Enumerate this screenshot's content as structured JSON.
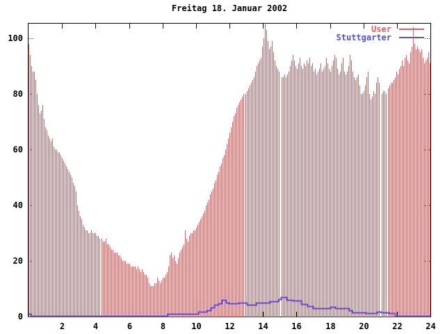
{
  "chart_data": {
    "type": "bar",
    "title": "Freitag 18. Januar 2002",
    "xlabel": "",
    "ylabel": "",
    "xlim": [
      0,
      24
    ],
    "ylim": [
      0,
      105.5
    ],
    "x_ticks": [
      2,
      4,
      6,
      8,
      10,
      12,
      14,
      16,
      18,
      20,
      22,
      24
    ],
    "y_ticks": [
      0,
      20,
      40,
      60,
      80,
      100
    ],
    "grid": "off",
    "legend_position": "top-right",
    "background_color": "#ffffff",
    "axis_color": "#000000",
    "x_step_hours": 0.083333,
    "series": [
      {
        "name": "User",
        "type": "impulse-bars",
        "color": "#f4575a",
        "values": [
          98,
          94,
          90,
          88,
          88,
          85,
          80,
          76,
          73,
          74,
          76,
          71,
          68,
          67,
          65,
          64,
          63,
          64,
          61,
          60,
          60,
          59,
          59,
          58,
          57,
          56,
          55,
          54,
          53,
          52,
          51,
          50,
          48,
          47,
          45,
          40,
          38,
          36,
          35,
          33,
          32,
          31,
          31,
          30,
          30,
          31,
          30,
          30,
          30,
          29,
          29,
          28,
          28,
          27,
          27,
          28,
          26,
          26,
          25,
          24,
          24,
          23,
          23,
          23,
          22,
          22,
          21,
          20,
          20,
          20,
          19,
          19,
          19,
          18,
          18,
          18,
          18,
          17,
          18,
          17,
          16,
          17,
          16,
          15,
          15,
          14,
          12,
          11,
          11,
          11,
          12,
          12,
          14,
          13,
          12,
          13,
          14,
          14,
          15,
          16,
          18,
          22,
          23,
          21,
          22,
          20,
          19,
          21,
          23,
          24,
          25,
          26,
          31,
          28,
          27,
          29,
          30,
          30,
          31,
          31,
          32,
          33,
          34,
          35,
          36,
          37,
          38,
          40,
          41,
          42,
          44,
          45,
          46,
          48,
          49,
          51,
          52,
          54,
          55,
          57,
          58,
          60,
          62,
          64,
          66,
          68,
          70,
          72,
          73,
          75,
          76,
          77,
          78,
          79,
          80,
          80,
          81,
          82,
          83,
          84,
          85,
          86,
          88,
          90,
          91,
          92,
          93,
          97,
          100,
          105,
          103,
          99,
          96,
          97,
          99,
          95,
          92,
          90,
          89,
          88,
          0,
          86,
          86,
          87,
          86,
          87,
          88,
          90,
          92,
          94,
          92,
          90,
          89,
          91,
          93,
          90,
          89,
          91,
          90,
          92,
          91,
          93,
          90,
          91,
          88,
          89,
          87,
          88,
          89,
          91,
          88,
          89,
          90,
          93,
          91,
          89,
          88,
          90,
          92,
          94,
          93,
          89,
          87,
          88,
          91,
          93,
          88,
          87,
          88,
          90,
          94,
          92,
          88,
          86,
          85,
          86,
          87,
          83,
          80,
          80,
          81,
          83,
          86,
          88,
          80,
          78,
          79,
          81,
          80,
          84,
          86,
          84,
          0,
          80,
          81,
          81,
          80,
          82,
          83,
          84,
          84,
          85,
          86,
          88,
          87,
          89,
          90,
          92,
          90,
          93,
          94,
          92,
          91,
          95,
          97,
          104,
          98,
          96,
          97,
          96,
          95,
          96,
          93,
          91,
          92,
          93,
          95,
          91
        ]
      },
      {
        "name": "Stuttgarter",
        "type": "step-line",
        "color": "#5050dc",
        "points": [
          [
            0,
            1.0
          ],
          [
            0.17,
            0.35
          ],
          [
            8.3,
            0.9
          ],
          [
            10.15,
            1.7
          ],
          [
            10.65,
            2.3
          ],
          [
            10.9,
            3.2
          ],
          [
            11.1,
            4.2
          ],
          [
            11.35,
            4.8
          ],
          [
            11.55,
            5.9
          ],
          [
            11.8,
            5.1
          ],
          [
            12.0,
            4.8
          ],
          [
            12.55,
            5.0
          ],
          [
            13.05,
            4.2
          ],
          [
            13.6,
            4.9
          ],
          [
            14.4,
            5.5
          ],
          [
            14.95,
            6.3
          ],
          [
            15.1,
            7.0
          ],
          [
            15.45,
            6.1
          ],
          [
            15.8,
            5.8
          ],
          [
            16.3,
            4.6
          ],
          [
            16.65,
            3.7
          ],
          [
            17.0,
            3.1
          ],
          [
            18.05,
            3.5
          ],
          [
            18.35,
            3.1
          ],
          [
            19.15,
            2.3
          ],
          [
            19.35,
            1.5
          ],
          [
            20.15,
            1.3
          ],
          [
            20.8,
            1.7
          ],
          [
            21.1,
            1.4
          ],
          [
            21.3,
            1.6
          ],
          [
            21.55,
            1.2
          ],
          [
            21.9,
            0.35
          ]
        ]
      }
    ]
  }
}
